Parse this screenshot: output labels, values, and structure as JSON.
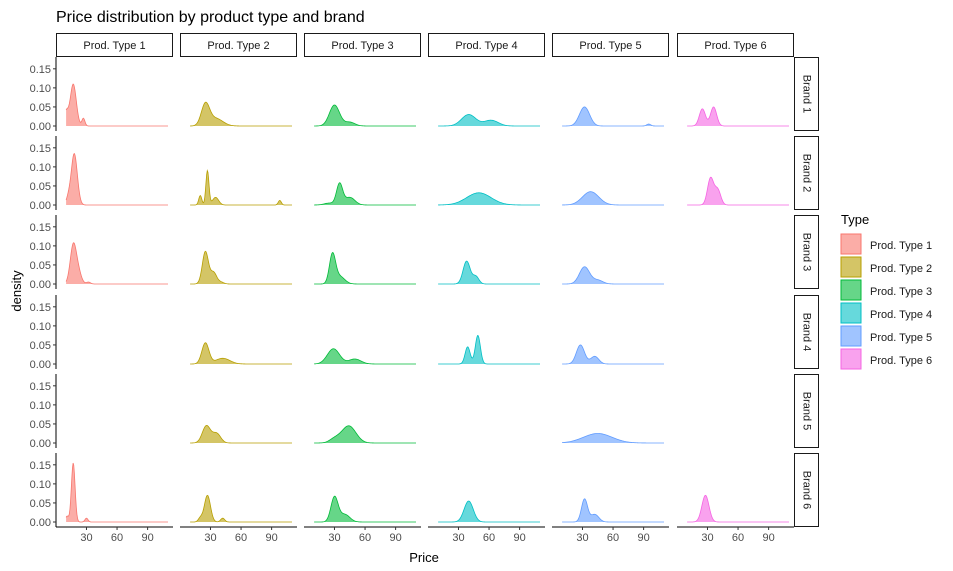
{
  "chart_data": {
    "type": "area",
    "title": "Price distribution by product type and brand",
    "xlabel": "Price",
    "ylabel": "density",
    "xlim": [
      5,
      110
    ],
    "ylim": [
      0,
      0.16
    ],
    "x_ticks": [
      30,
      60,
      90
    ],
    "y_ticks": [
      0.0,
      0.05,
      0.1,
      0.15
    ],
    "x_tick_labels": [
      "30",
      "60",
      "90"
    ],
    "y_tick_labels": [
      "0.00",
      "0.05",
      "0.10",
      "0.15"
    ],
    "grid": false,
    "legend_position": "right",
    "legend_title": "Type",
    "columns": [
      "Prod. Type 1",
      "Prod. Type 2",
      "Prod. Type 3",
      "Prod. Type 4",
      "Prod. Type 5",
      "Prod. Type 6"
    ],
    "rows": [
      "Brand 1",
      "Brand 2",
      "Brand 3",
      "Brand 4",
      "Brand 5",
      "Brand 6"
    ],
    "colors": [
      "#F8766D",
      "#B79F00",
      "#00BA38",
      "#00BFC4",
      "#619CFF",
      "#F564E3"
    ],
    "series": [
      {
        "type_index": 0,
        "brand_index": 0,
        "range": [
          10,
          110
        ],
        "components": [
          [
            17,
            3,
            0.11
          ],
          [
            10,
            2,
            0.035
          ],
          [
            27,
            1.5,
            0.02
          ]
        ]
      },
      {
        "type_index": 0,
        "brand_index": 1,
        "range": [
          10,
          110
        ],
        "components": [
          [
            18,
            3,
            0.135
          ],
          [
            12,
            2,
            0.015
          ]
        ]
      },
      {
        "type_index": 0,
        "brand_index": 2,
        "range": [
          10,
          110
        ],
        "components": [
          [
            17,
            3,
            0.1
          ],
          [
            22,
            3,
            0.03
          ],
          [
            32,
            2,
            0.005
          ]
        ]
      },
      {
        "type_index": 0,
        "brand_index": 5,
        "range": [
          10,
          110
        ],
        "components": [
          [
            17,
            1.8,
            0.155
          ],
          [
            11,
            1.5,
            0.015
          ],
          [
            30,
            1.5,
            0.01
          ]
        ]
      },
      {
        "type_index": 1,
        "brand_index": 0,
        "range": [
          10,
          110
        ],
        "components": [
          [
            25,
            4,
            0.055
          ],
          [
            35,
            7,
            0.02
          ]
        ]
      },
      {
        "type_index": 1,
        "brand_index": 1,
        "range": [
          10,
          110
        ],
        "components": [
          [
            27,
            1.5,
            0.09
          ],
          [
            20,
            1.5,
            0.025
          ],
          [
            35,
            3,
            0.02
          ],
          [
            98,
            1.5,
            0.012
          ]
        ]
      },
      {
        "type_index": 1,
        "brand_index": 2,
        "range": [
          10,
          110
        ],
        "components": [
          [
            25,
            3,
            0.085
          ],
          [
            33,
            3,
            0.03
          ],
          [
            40,
            3,
            0.005
          ]
        ]
      },
      {
        "type_index": 1,
        "brand_index": 3,
        "range": [
          10,
          110
        ],
        "components": [
          [
            25,
            3.5,
            0.055
          ],
          [
            42,
            7,
            0.015
          ]
        ]
      },
      {
        "type_index": 1,
        "brand_index": 4,
        "range": [
          10,
          110
        ],
        "components": [
          [
            26,
            4,
            0.045
          ],
          [
            36,
            4,
            0.025
          ]
        ]
      },
      {
        "type_index": 1,
        "brand_index": 5,
        "range": [
          10,
          110
        ],
        "components": [
          [
            27,
            3,
            0.07
          ],
          [
            20,
            2,
            0.01
          ],
          [
            42,
            2,
            0.01
          ]
        ]
      },
      {
        "type_index": 2,
        "brand_index": 0,
        "range": [
          10,
          110
        ],
        "components": [
          [
            30,
            5,
            0.055
          ],
          [
            45,
            5,
            0.01
          ]
        ]
      },
      {
        "type_index": 2,
        "brand_index": 1,
        "range": [
          10,
          110
        ],
        "components": [
          [
            35,
            3,
            0.055
          ],
          [
            45,
            5,
            0.02
          ],
          [
            25,
            5,
            0.005
          ]
        ]
      },
      {
        "type_index": 2,
        "brand_index": 2,
        "range": [
          10,
          110
        ],
        "components": [
          [
            28,
            3,
            0.075
          ],
          [
            35,
            5,
            0.02
          ]
        ]
      },
      {
        "type_index": 2,
        "brand_index": 3,
        "range": [
          10,
          110
        ],
        "components": [
          [
            29,
            6,
            0.04
          ],
          [
            50,
            6,
            0.013
          ]
        ]
      },
      {
        "type_index": 2,
        "brand_index": 4,
        "range": [
          10,
          110
        ],
        "components": [
          [
            44,
            7,
            0.045
          ],
          [
            30,
            5,
            0.01
          ]
        ]
      },
      {
        "type_index": 2,
        "brand_index": 5,
        "range": [
          10,
          110
        ],
        "components": [
          [
            30,
            3.5,
            0.065
          ],
          [
            40,
            5,
            0.02
          ]
        ]
      },
      {
        "type_index": 3,
        "brand_index": 0,
        "range": [
          10,
          110
        ],
        "components": [
          [
            40,
            7,
            0.03
          ],
          [
            62,
            7,
            0.015
          ]
        ]
      },
      {
        "type_index": 3,
        "brand_index": 1,
        "range": [
          10,
          110
        ],
        "components": [
          [
            50,
            12,
            0.032
          ]
        ]
      },
      {
        "type_index": 3,
        "brand_index": 2,
        "range": [
          10,
          110
        ],
        "components": [
          [
            38,
            3.5,
            0.06
          ],
          [
            47,
            3,
            0.02
          ]
        ]
      },
      {
        "type_index": 3,
        "brand_index": 3,
        "range": [
          10,
          110
        ],
        "components": [
          [
            49,
            2.5,
            0.075
          ],
          [
            39,
            2.5,
            0.045
          ]
        ]
      },
      {
        "type_index": 3,
        "brand_index": 5,
        "range": [
          10,
          110
        ],
        "components": [
          [
            40,
            4.5,
            0.055
          ]
        ]
      },
      {
        "type_index": 4,
        "brand_index": 0,
        "range": [
          10,
          110
        ],
        "components": [
          [
            32,
            5,
            0.05
          ],
          [
            95,
            2,
            0.005
          ]
        ]
      },
      {
        "type_index": 4,
        "brand_index": 1,
        "range": [
          10,
          110
        ],
        "components": [
          [
            38,
            8,
            0.035
          ]
        ]
      },
      {
        "type_index": 4,
        "brand_index": 2,
        "range": [
          10,
          110
        ],
        "components": [
          [
            32,
            5,
            0.045
          ],
          [
            45,
            5,
            0.01
          ]
        ]
      },
      {
        "type_index": 4,
        "brand_index": 3,
        "range": [
          10,
          110
        ],
        "components": [
          [
            28,
            4,
            0.05
          ],
          [
            42,
            4,
            0.02
          ]
        ]
      },
      {
        "type_index": 4,
        "brand_index": 4,
        "range": [
          10,
          110
        ],
        "components": [
          [
            45,
            14,
            0.025
          ]
        ]
      },
      {
        "type_index": 4,
        "brand_index": 5,
        "range": [
          10,
          110
        ],
        "components": [
          [
            32,
            3,
            0.06
          ],
          [
            42,
            4,
            0.02
          ]
        ]
      },
      {
        "type_index": 5,
        "brand_index": 0,
        "range": [
          10,
          110
        ],
        "components": [
          [
            25,
            3,
            0.045
          ],
          [
            36,
            3,
            0.05
          ]
        ]
      },
      {
        "type_index": 5,
        "brand_index": 1,
        "range": [
          10,
          110
        ],
        "components": [
          [
            33,
            3,
            0.07
          ],
          [
            40,
            3,
            0.04
          ]
        ]
      },
      {
        "type_index": 5,
        "brand_index": 5,
        "range": [
          10,
          110
        ],
        "components": [
          [
            28,
            3.5,
            0.07
          ]
        ]
      }
    ]
  }
}
